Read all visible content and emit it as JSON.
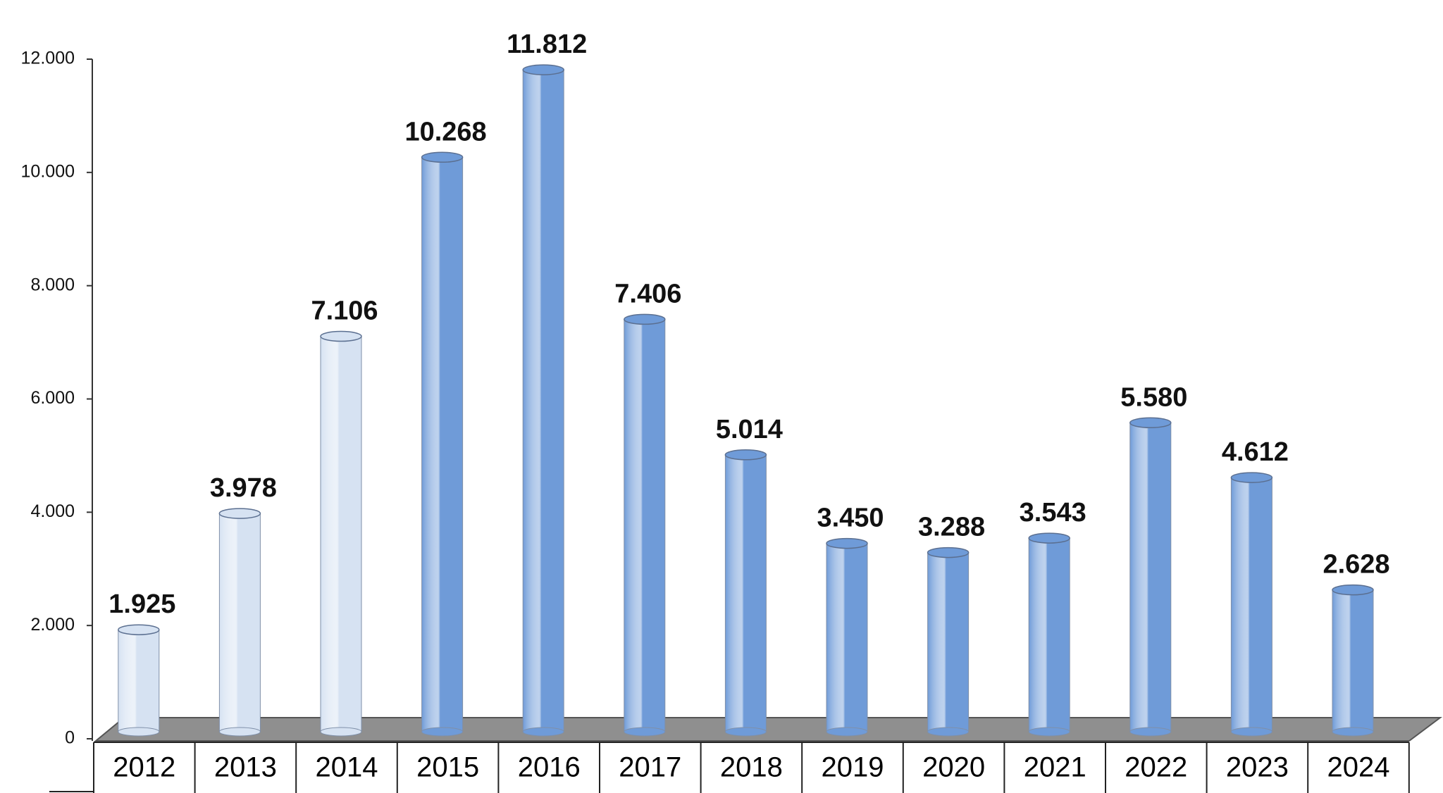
{
  "chart_data": {
    "type": "bar",
    "categories": [
      "2012",
      "2013",
      "2014",
      "2015",
      "2016",
      "2017",
      "2018",
      "2019",
      "2020",
      "2021",
      "2022",
      "2023",
      "2024"
    ],
    "values": [
      1925,
      3978,
      7106,
      10268,
      11812,
      7406,
      5014,
      3450,
      3288,
      3543,
      5580,
      4612,
      2628
    ],
    "value_labels": [
      "1.925",
      "3.978",
      "7.106",
      "10.268",
      "11.812",
      "7.406",
      "5.014",
      "3.450",
      "3.288",
      "3.543",
      "5.580",
      "4.612",
      "2.628"
    ],
    "colors": [
      "#d6e2f2",
      "#d6e2f2",
      "#d6e2f2",
      "#6f9bd8",
      "#6f9bd8",
      "#6f9bd8",
      "#6f9bd8",
      "#6f9bd8",
      "#6f9bd8",
      "#6f9bd8",
      "#6f9bd8",
      "#6f9bd8",
      "#6f9bd8"
    ],
    "ylim": [
      0,
      12000
    ],
    "yticks": [
      0,
      {
        "value": 2000,
        "label": "2.000"
      },
      {
        "value": 4000,
        "label": "4.000"
      },
      {
        "value": 6000,
        "label": "6.000"
      },
      {
        "value": 8000,
        "label": "8.000"
      },
      {
        "value": 10000,
        "label": "10.000"
      },
      {
        "value": 12000,
        "label": "12.000"
      }
    ]
  }
}
